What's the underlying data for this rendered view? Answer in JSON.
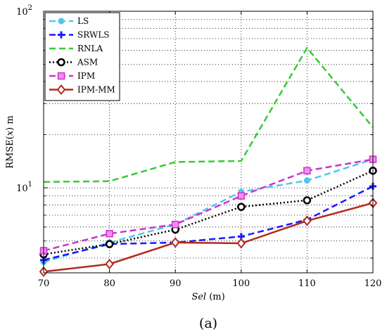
{
  "chart_data": {
    "type": "line",
    "x": [
      70,
      80,
      90,
      100,
      110,
      120
    ],
    "xlim": [
      70,
      120
    ],
    "x_ticks": [
      "70",
      "80",
      "90",
      "100",
      "110",
      "120"
    ],
    "xlabel_italic": "Sel",
    "xlabel_rest": " (m)",
    "ylabel": "RMSE(x) m",
    "ylabel_parts": [
      "RMSE(",
      "x",
      ") m"
    ],
    "y_scale": "log",
    "ylim": [
      3.3,
      100
    ],
    "y_ticks": [
      {
        "value": 10,
        "base": "10",
        "exp": "1"
      },
      {
        "value": 100,
        "base": "10",
        "exp": "2"
      }
    ],
    "grid": true,
    "legend_position": "top-left",
    "caption": "(a)",
    "series": [
      {
        "name": "LS",
        "values": [
          3.8,
          4.9,
          6.2,
          9.5,
          11.0,
          14.5
        ],
        "color": "#4fc8f0",
        "dash": "9,5",
        "marker": "circle"
      },
      {
        "name": "SRWLS",
        "values": [
          3.9,
          4.8,
          4.9,
          5.3,
          6.6,
          10.2
        ],
        "color": "#1a1aff",
        "dash": "9,5",
        "marker": "plus"
      },
      {
        "name": "RNLA",
        "values": [
          10.8,
          10.9,
          14.0,
          14.2,
          62.0,
          22.0
        ],
        "color": "#33cc33",
        "dash": "9,5",
        "marker": "none"
      },
      {
        "name": "ASM",
        "values": [
          4.2,
          4.8,
          5.8,
          7.8,
          8.5,
          12.5
        ],
        "color": "#000000",
        "dash": "2,3",
        "marker": "ring"
      },
      {
        "name": "IPM",
        "values": [
          4.4,
          5.5,
          6.2,
          9.0,
          12.5,
          14.5
        ],
        "color": "#cc33cc",
        "dash": "9,5",
        "marker": "square"
      },
      {
        "name": "IPM-MM",
        "values": [
          3.35,
          3.7,
          4.9,
          4.85,
          6.5,
          8.2
        ],
        "color": "#b02b1e",
        "dash": "",
        "marker": "diamond"
      }
    ]
  }
}
